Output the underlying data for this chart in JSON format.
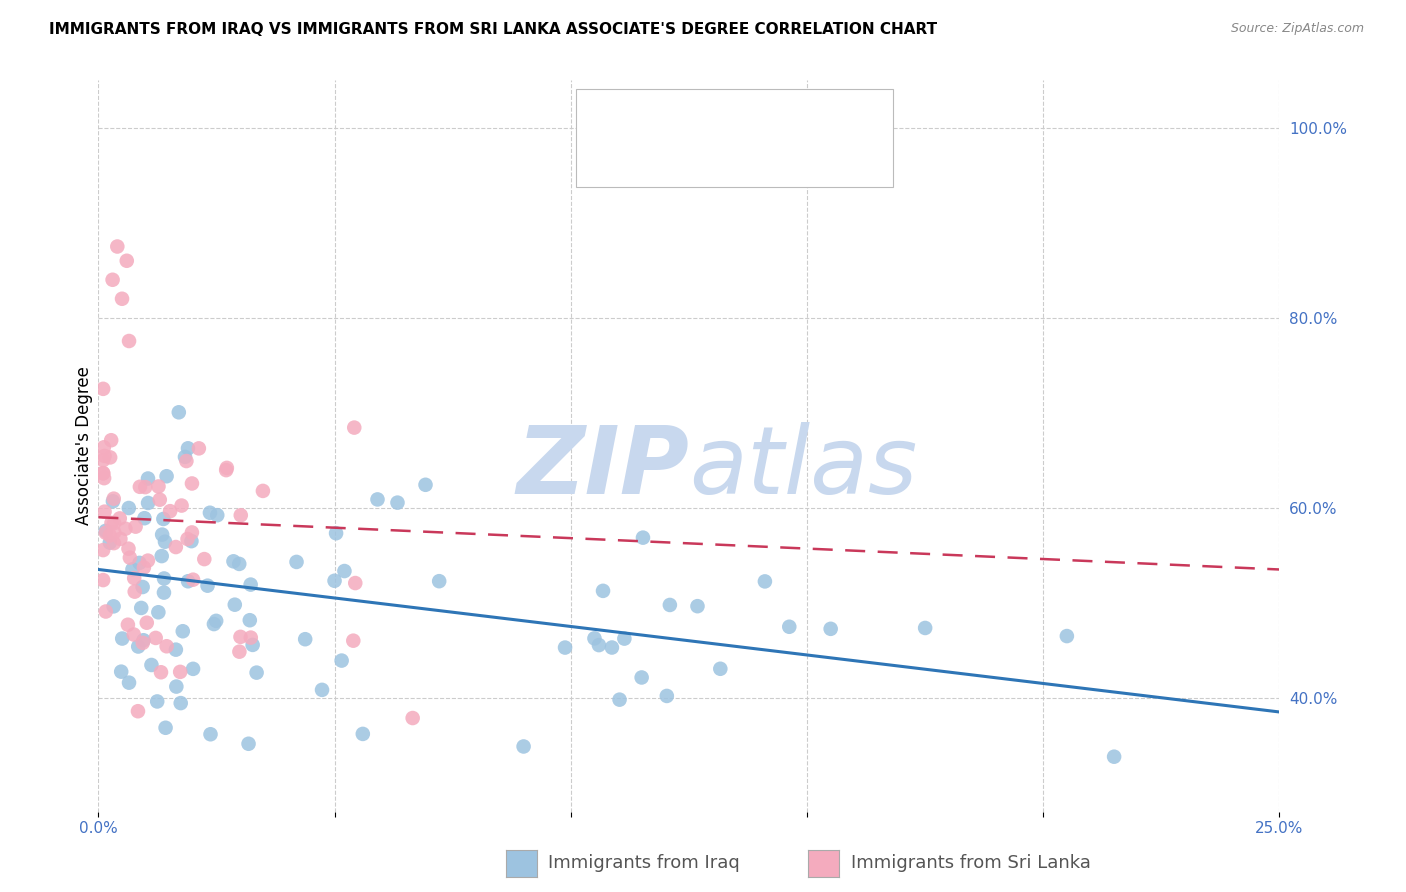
{
  "title": "IMMIGRANTS FROM IRAQ VS IMMIGRANTS FROM SRI LANKA ASSOCIATE'S DEGREE CORRELATION CHART",
  "source": "Source: ZipAtlas.com",
  "xlabel_bottom": "Immigrants from Iraq",
  "xlabel_bottom2": "Immigrants from Sri Lanka",
  "ylabel": "Associate's Degree",
  "x_min": 0.0,
  "x_max": 0.25,
  "y_min": 0.28,
  "y_max": 1.05,
  "right_yticks": [
    1.0,
    0.8,
    0.6,
    0.4
  ],
  "right_yticklabels": [
    "100.0%",
    "80.0%",
    "60.0%",
    "40.0%"
  ],
  "xticks": [
    0.0,
    0.05,
    0.1,
    0.15,
    0.2,
    0.25
  ],
  "xticklabels": [
    "0.0%",
    "",
    "",
    "",
    "",
    "25.0%"
  ],
  "color_iraq": "#9DC3E0",
  "color_srilanka": "#F4ABBE",
  "color_iraq_line": "#2E75B6",
  "color_srilanka_line": "#C9385A",
  "color_text_blue": "#4472C4",
  "color_grid": "#CCCCCC",
  "watermark_zip": "ZIP",
  "watermark_atlas": "atlas",
  "watermark_color": "#C8D8EE",
  "legend_text_color": "#4472C4",
  "title_fontsize": 11,
  "axis_label_fontsize": 12,
  "tick_fontsize": 11,
  "legend_fontsize": 13,
  "watermark_fontsize_zip": 62,
  "watermark_fontsize_atlas": 62
}
